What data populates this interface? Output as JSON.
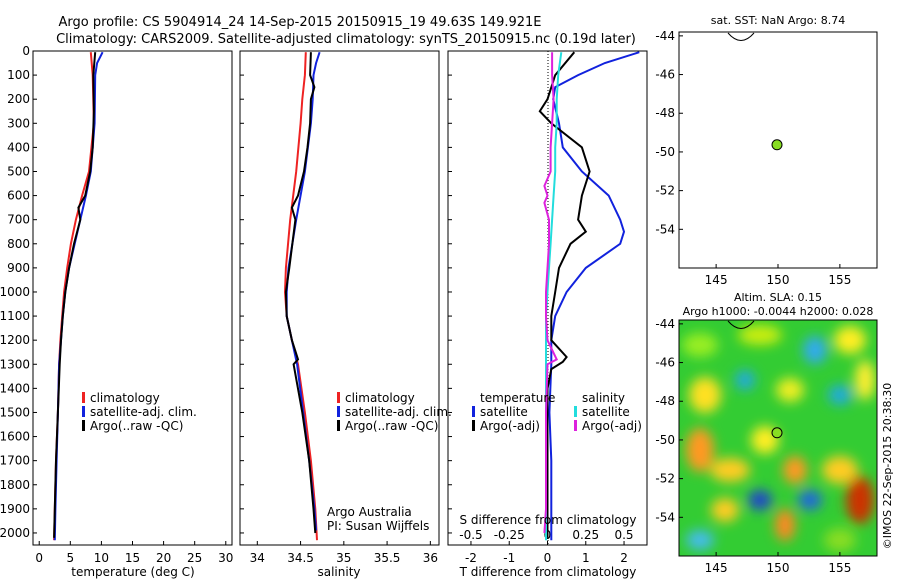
{
  "title": {
    "line1": "Argo profile: CS 5904914_24 14-Sep-2015 20150915_19 49.63S 149.921E",
    "line2": "Climatology: CARS2009. Satellite-adjusted climatology: synTS_20150915.nc (0.19d later)"
  },
  "colors": {
    "climatology": "#ee2222",
    "satellite": "#1122dd",
    "argo": "#000000",
    "sal_satellite": "#22dddd",
    "sal_argo": "#dd22dd",
    "marker": "#88dd22"
  },
  "chart_data": [
    {
      "id": "temperature",
      "type": "line",
      "xlabel": "temperature (deg C)",
      "xlim": [
        -1,
        31
      ],
      "ylim": [
        2050,
        0
      ],
      "xticks": [
        0,
        5,
        10,
        15,
        20,
        25,
        30
      ],
      "yticks": [
        0,
        100,
        200,
        300,
        400,
        500,
        600,
        700,
        800,
        900,
        1000,
        1100,
        1200,
        1300,
        1400,
        1500,
        1600,
        1700,
        1800,
        1900,
        2000
      ],
      "legend": [
        "climatology",
        "satellite-adj. clim.",
        "Argo(..raw -QC)"
      ],
      "series": [
        {
          "name": "climatology",
          "color": "#ee2222",
          "depth": [
            5,
            100,
            300,
            500,
            600,
            700,
            800,
            900,
            1000,
            1100,
            1200,
            1300,
            1500,
            1700,
            1900,
            2030
          ],
          "values": [
            8.3,
            8.6,
            8.8,
            8.0,
            6.9,
            5.9,
            5.1,
            4.5,
            4.0,
            3.7,
            3.4,
            3.2,
            3.0,
            2.7,
            2.5,
            2.4
          ]
        },
        {
          "name": "satellite-adj. clim.",
          "color": "#1122dd",
          "depth": [
            5,
            50,
            100,
            300,
            500,
            600,
            700,
            800,
            900,
            1000,
            1100,
            1200,
            1300,
            1500,
            1700,
            1900,
            2030
          ],
          "values": [
            10.2,
            9.3,
            9.0,
            8.9,
            8.3,
            7.5,
            6.6,
            5.7,
            4.8,
            4.2,
            3.8,
            3.5,
            3.2,
            3.0,
            2.8,
            2.6,
            2.5
          ]
        },
        {
          "name": "Argo(..raw -QC)",
          "color": "#000000",
          "depth": [
            5,
            100,
            250,
            400,
            500,
            600,
            650,
            700,
            800,
            900,
            1000,
            1100,
            1200,
            1300,
            1500,
            1700,
            1900,
            2020
          ],
          "values": [
            9.0,
            8.7,
            8.8,
            8.6,
            8.2,
            7.4,
            6.3,
            6.6,
            5.6,
            4.8,
            4.2,
            3.8,
            3.5,
            3.3,
            3.0,
            2.7,
            2.5,
            2.4
          ]
        }
      ]
    },
    {
      "id": "salinity",
      "type": "line",
      "xlabel": "salinity",
      "xlim": [
        33.8,
        36.1
      ],
      "ylim": [
        2050,
        0
      ],
      "xticks": [
        34,
        34.5,
        35,
        35.5,
        36
      ],
      "legend": [
        "climatology",
        "satellite-adj. clim.",
        "Argo(..raw -QC)"
      ],
      "series": [
        {
          "name": "climatology",
          "color": "#ee2222",
          "depth": [
            5,
            100,
            200,
            300,
            500,
            700,
            900,
            1000,
            1100,
            1200,
            1300,
            1500,
            1700,
            1900,
            2030
          ],
          "values": [
            34.56,
            34.55,
            34.52,
            34.5,
            34.45,
            34.38,
            34.33,
            34.32,
            34.34,
            34.4,
            34.47,
            34.55,
            34.62,
            34.67,
            34.69
          ]
        },
        {
          "name": "satellite-adj. clim.",
          "color": "#1122dd",
          "depth": [
            5,
            50,
            100,
            200,
            300,
            500,
            700,
            900,
            1000,
            1100,
            1200,
            1300,
            1500,
            1700,
            1900,
            1990
          ],
          "values": [
            34.72,
            34.68,
            34.65,
            34.64,
            34.62,
            34.55,
            34.45,
            34.36,
            34.34,
            34.34,
            34.4,
            34.46,
            34.53,
            34.6,
            34.66,
            34.68
          ]
        },
        {
          "name": "Argo(..raw -QC)",
          "color": "#000000",
          "depth": [
            5,
            100,
            150,
            200,
            300,
            400,
            500,
            600,
            650,
            700,
            900,
            1000,
            1100,
            1200,
            1280,
            1300,
            1500,
            1700,
            1900,
            2000
          ],
          "values": [
            34.62,
            34.61,
            34.66,
            34.62,
            34.61,
            34.58,
            34.54,
            34.47,
            34.4,
            34.44,
            34.37,
            34.33,
            34.34,
            34.4,
            34.47,
            34.42,
            34.52,
            34.6,
            34.65,
            34.67
          ]
        }
      ]
    },
    {
      "id": "difference",
      "type": "line",
      "xlabel": "T difference from climatology",
      "xlabel_top": "S difference from climatology",
      "xlim": [
        -2.6,
        2.6
      ],
      "ylim": [
        2050,
        0
      ],
      "xticks": [
        -2,
        -1,
        0,
        1,
        2
      ],
      "xticks_top": [
        "-0.5",
        "-0.25",
        "0",
        "0.25",
        "0.5"
      ],
      "legend_headers": [
        "temperature",
        "salinity"
      ],
      "legend": [
        "satellite",
        "Argo(-adj)",
        "satellite",
        "Argo(-adj)"
      ],
      "series": [
        {
          "name": "satellite",
          "group": "temperature",
          "color": "#1122dd",
          "depth": [
            5,
            50,
            100,
            150,
            200,
            300,
            400,
            500,
            600,
            700,
            750,
            800,
            900,
            1000,
            1100,
            1200,
            1300,
            1500,
            1700,
            1900,
            2030
          ],
          "values": [
            2.4,
            1.5,
            0.8,
            0.2,
            0.15,
            0.3,
            0.4,
            0.9,
            1.6,
            1.9,
            2.0,
            1.9,
            1.0,
            0.5,
            0.2,
            0.1,
            0.1,
            0.05,
            0.1,
            0.1,
            0.1
          ]
        },
        {
          "name": "Argo(-adj)",
          "group": "temperature",
          "color": "#000000",
          "depth": [
            5,
            100,
            200,
            250,
            300,
            400,
            500,
            600,
            700,
            750,
            800,
            900,
            1000,
            1100,
            1200,
            1270,
            1290,
            1320,
            1400,
            1600,
            1800,
            2020
          ],
          "values": [
            0.7,
            0.2,
            0.0,
            -0.2,
            0.1,
            0.9,
            1.1,
            0.9,
            0.8,
            1.0,
            0.6,
            0.3,
            0.2,
            0.1,
            0.1,
            0.5,
            0.4,
            0.1,
            0.0,
            0.0,
            0.0,
            0.0
          ]
        },
        {
          "name": "satellite",
          "group": "salinity",
          "color": "#22dddd",
          "depth": [
            5,
            100,
            200,
            300,
            400,
            500,
            600,
            700,
            800,
            900,
            1000,
            1100,
            1200,
            1300,
            1500,
            1700,
            1900,
            2030
          ],
          "values": [
            0.09,
            0.07,
            0.06,
            0.06,
            0.05,
            0.05,
            0.04,
            0.03,
            0.02,
            0.01,
            0.0,
            -0.01,
            -0.01,
            -0.01,
            -0.01,
            -0.01,
            -0.01,
            -0.01
          ]
        },
        {
          "name": "Argo(-adj)",
          "group": "salinity",
          "color": "#dd22dd",
          "depth": [
            5,
            100,
            200,
            300,
            400,
            500,
            560,
            600,
            630,
            700,
            800,
            900,
            1000,
            1100,
            1200,
            1280,
            1300,
            1500,
            1700,
            1900,
            2000
          ],
          "values": [
            0.03,
            0.03,
            0.04,
            0.03,
            0.02,
            0.02,
            -0.02,
            0.0,
            -0.02,
            0.01,
            0.01,
            0.0,
            -0.01,
            -0.01,
            0.0,
            0.06,
            0.0,
            -0.01,
            -0.01,
            -0.01,
            -0.02
          ]
        }
      ]
    },
    {
      "id": "sst-map",
      "type": "scatter",
      "title": "sat. SST: NaN  Argo: 8.74",
      "xlim": [
        142,
        158
      ],
      "ylim": [
        -56,
        -43.8
      ],
      "xticks": [
        145,
        150,
        155
      ],
      "yticks": [
        -44,
        -46,
        -48,
        -50,
        -52,
        -54
      ],
      "points": [
        {
          "x": 149.92,
          "y": -49.63
        }
      ]
    },
    {
      "id": "sla-map",
      "type": "heatmap",
      "title": "Altim. SLA: 0.15",
      "subtitle": "Argo h1000: -0.0044  h2000: 0.028",
      "xlim": [
        142,
        158
      ],
      "ylim": [
        -56,
        -43.8
      ],
      "xticks": [
        145,
        150,
        155
      ],
      "yticks": [
        -44,
        -46,
        -48,
        -50,
        -52,
        -54
      ],
      "points": [
        {
          "x": 149.92,
          "y": -49.63
        }
      ]
    }
  ],
  "panels": {
    "p1_title": "",
    "p2_title": "",
    "sal_note1": "Argo Australia",
    "sal_note2": "PI: Susan Wijffels"
  },
  "watermark": "©IMOS 22-Sep-2015 20:38:30"
}
